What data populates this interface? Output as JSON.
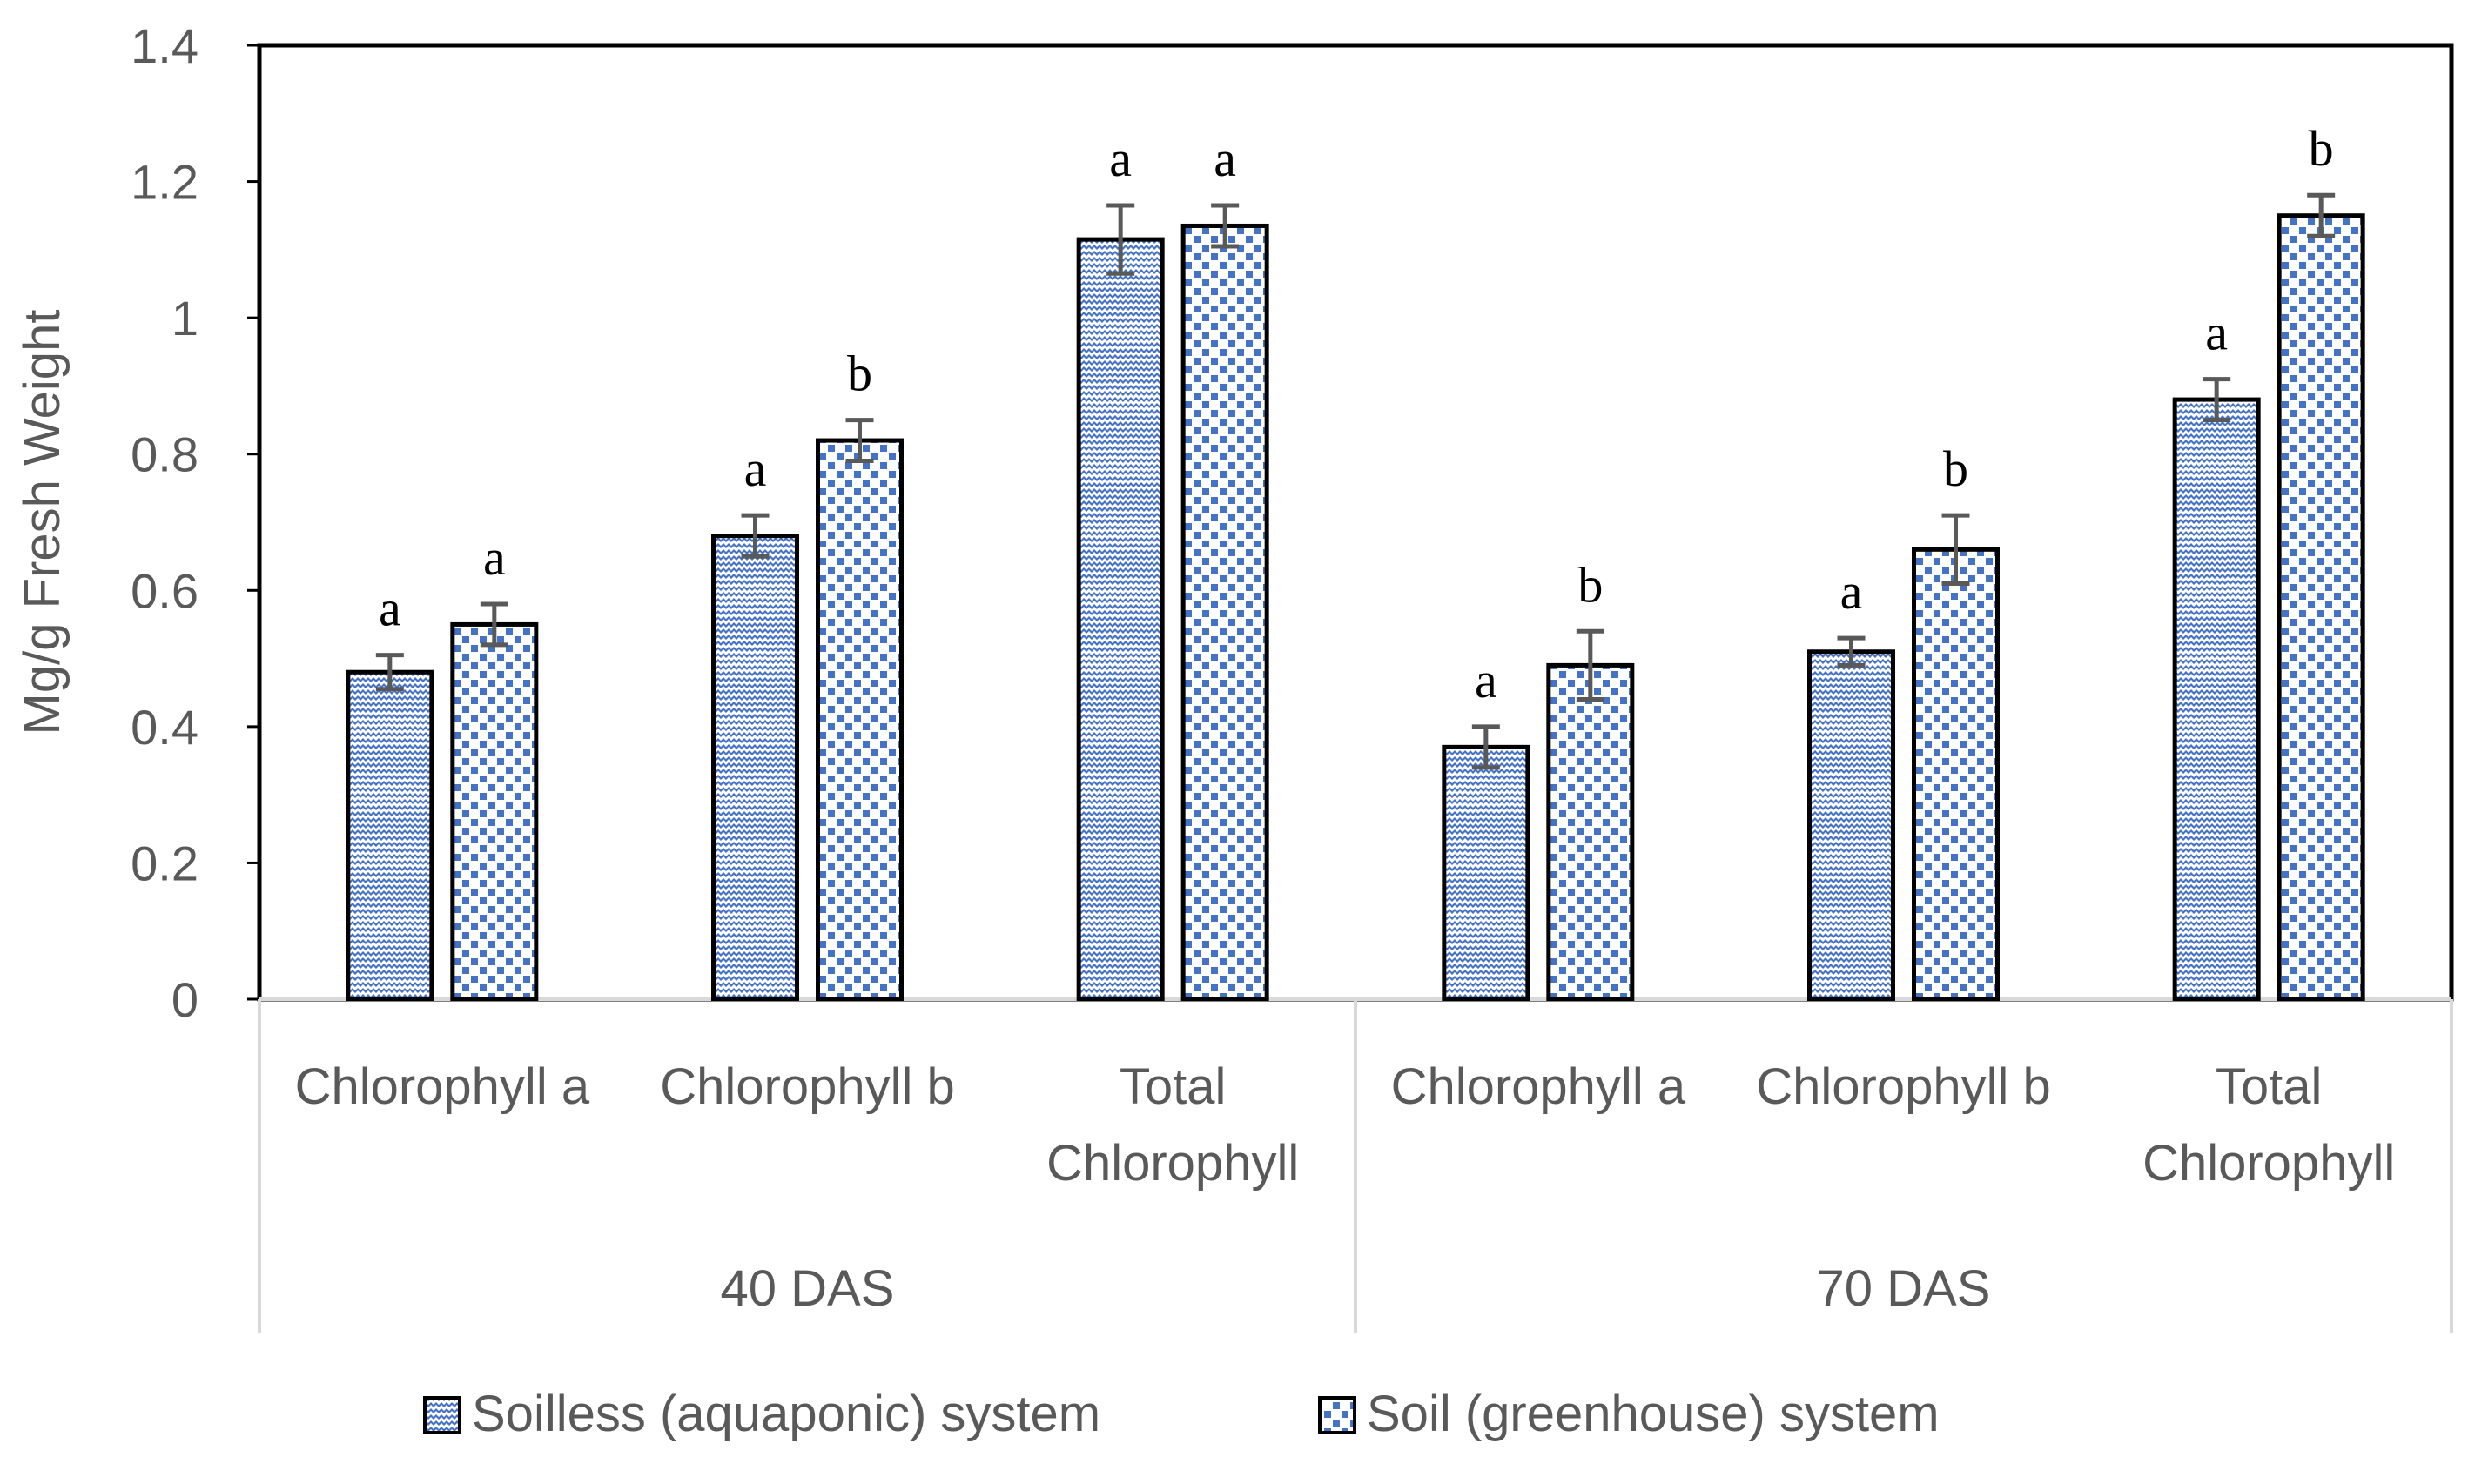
{
  "chart_data": {
    "type": "bar",
    "ylabel": "Mg/g Fresh Weight",
    "ylim": [
      0,
      1.4
    ],
    "yticks": [
      0,
      0.2,
      0.4,
      0.6,
      0.8,
      1,
      1.2,
      1.4
    ],
    "ytick_labels": [
      "0",
      "0.2",
      "0.4",
      "0.6",
      "0.8",
      "1",
      "1.2",
      "1.4"
    ],
    "groups": [
      {
        "label": "40 DAS",
        "categories": [
          {
            "lines": [
              "Chlorophyll a"
            ]
          },
          {
            "lines": [
              "Chlorophyll b"
            ]
          },
          {
            "lines": [
              "Total",
              "Chlorophyll"
            ]
          }
        ]
      },
      {
        "label": "70 DAS",
        "categories": [
          {
            "lines": [
              "Chlorophyll a"
            ]
          },
          {
            "lines": [
              "Chlorophyll b"
            ]
          },
          {
            "lines": [
              "Total",
              "Chlorophyll"
            ]
          }
        ]
      }
    ],
    "series": [
      {
        "name": "Soilless (aquaponic) system",
        "pattern": "wave",
        "values": [
          0.48,
          0.68,
          1.115,
          0.37,
          0.51,
          0.88
        ],
        "errors": [
          0.025,
          0.03,
          0.05,
          0.03,
          0.02,
          0.03
        ],
        "letters": [
          "a",
          "a",
          "a",
          "a",
          "a",
          "a"
        ]
      },
      {
        "name": "Soil (greenhouse) system",
        "pattern": "dots",
        "values": [
          0.55,
          0.82,
          1.135,
          0.49,
          0.66,
          1.15
        ],
        "errors": [
          0.03,
          0.03,
          0.03,
          0.05,
          0.05,
          0.03
        ],
        "letters": [
          "a",
          "b",
          "a",
          "b",
          "b",
          "b"
        ]
      }
    ],
    "legend_position": "bottom",
    "colors": {
      "pattern": "#4472C4",
      "border": "#000000",
      "error_bar": "#595959",
      "axis": "#d9d9d9",
      "text": "#595959"
    }
  }
}
